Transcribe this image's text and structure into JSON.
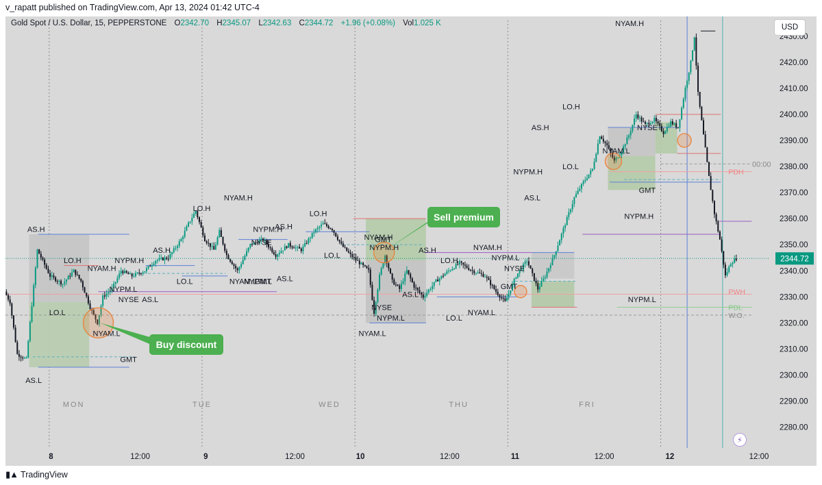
{
  "publish_line": "v_rapatt published on TradingView.com, Apr 13, 2024 01:42 UTC-4",
  "legend": {
    "symbol": "Gold Spot / U.S. Dollar, 15, PEPPERSTONE",
    "o_label": "O",
    "o": "2342.70",
    "h_label": "H",
    "h": "2345.07",
    "l_label": "L",
    "l": "2342.63",
    "c_label": "C",
    "c": "2344.72",
    "change": "+1.96 (+0.08%)",
    "vol_label": "Vol",
    "vol": "1.025 K"
  },
  "currency_button": "USD",
  "price_tag": "2344.72",
  "countdown": "00:00",
  "footer_brand": "TradingView",
  "colors": {
    "up": "#089981",
    "down": "#131722",
    "accent_green": "#4caf50",
    "annotation_circle": "#e8823a"
  },
  "chart_data": {
    "type": "candlestick",
    "symbol": "Gold Spot / U.S. Dollar",
    "timeframe": "15",
    "ylim": [
      2272,
      2436
    ],
    "y_ticks": [
      2280,
      2290,
      2300,
      2310,
      2320,
      2330,
      2340,
      2350,
      2360,
      2370,
      2380,
      2390,
      2400,
      2410,
      2420,
      2430
    ],
    "x_ticks": [
      "8",
      "12:00",
      "9",
      "12:00",
      "10",
      "12:00",
      "11",
      "12:00",
      "12",
      "12:00"
    ],
    "day_labels": [
      "MON",
      "TUE",
      "WED",
      "THU",
      "FRI"
    ],
    "last_price": 2344.72,
    "price_path": [
      {
        "t": 0.0,
        "p": 2332
      },
      {
        "t": 0.6,
        "p": 2328
      },
      {
        "t": 1.4,
        "p": 2308
      },
      {
        "t": 2.4,
        "p": 2306
      },
      {
        "t": 3.6,
        "p": 2348
      },
      {
        "t": 5.0,
        "p": 2338
      },
      {
        "t": 6.4,
        "p": 2335
      },
      {
        "t": 7.6,
        "p": 2340
      },
      {
        "t": 8.4,
        "p": 2336
      },
      {
        "t": 9.4,
        "p": 2326
      },
      {
        "t": 10.2,
        "p": 2320
      },
      {
        "t": 10.8,
        "p": 2330
      },
      {
        "t": 11.8,
        "p": 2333
      },
      {
        "t": 12.8,
        "p": 2340
      },
      {
        "t": 14.0,
        "p": 2338
      },
      {
        "t": 15.4,
        "p": 2340
      },
      {
        "t": 16.6,
        "p": 2344
      },
      {
        "t": 18.0,
        "p": 2345
      },
      {
        "t": 19.4,
        "p": 2352
      },
      {
        "t": 20.2,
        "p": 2358
      },
      {
        "t": 21.0,
        "p": 2363
      },
      {
        "t": 22.0,
        "p": 2352
      },
      {
        "t": 23.0,
        "p": 2348
      },
      {
        "t": 23.6,
        "p": 2355
      },
      {
        "t": 24.4,
        "p": 2346
      },
      {
        "t": 25.6,
        "p": 2340
      },
      {
        "t": 27.0,
        "p": 2350
      },
      {
        "t": 28.4,
        "p": 2352
      },
      {
        "t": 29.8,
        "p": 2346
      },
      {
        "t": 31.2,
        "p": 2350
      },
      {
        "t": 32.6,
        "p": 2348
      },
      {
        "t": 34.0,
        "p": 2355
      },
      {
        "t": 35.0,
        "p": 2358
      },
      {
        "t": 36.0,
        "p": 2356
      },
      {
        "t": 37.0,
        "p": 2350
      },
      {
        "t": 38.0,
        "p": 2346
      },
      {
        "t": 39.0,
        "p": 2343
      },
      {
        "t": 40.0,
        "p": 2340
      },
      {
        "t": 40.6,
        "p": 2324
      },
      {
        "t": 41.2,
        "p": 2338
      },
      {
        "t": 41.8,
        "p": 2346
      },
      {
        "t": 42.6,
        "p": 2336
      },
      {
        "t": 43.4,
        "p": 2333
      },
      {
        "t": 44.2,
        "p": 2340
      },
      {
        "t": 45.0,
        "p": 2334
      },
      {
        "t": 46.0,
        "p": 2330
      },
      {
        "t": 47.4,
        "p": 2336
      },
      {
        "t": 48.8,
        "p": 2340
      },
      {
        "t": 50.0,
        "p": 2343
      },
      {
        "t": 51.4,
        "p": 2340
      },
      {
        "t": 52.8,
        "p": 2338
      },
      {
        "t": 54.0,
        "p": 2332
      },
      {
        "t": 55.0,
        "p": 2328
      },
      {
        "t": 56.2,
        "p": 2338
      },
      {
        "t": 57.4,
        "p": 2344
      },
      {
        "t": 58.6,
        "p": 2333
      },
      {
        "t": 59.4,
        "p": 2338
      },
      {
        "t": 60.4,
        "p": 2346
      },
      {
        "t": 61.6,
        "p": 2358
      },
      {
        "t": 62.6,
        "p": 2368
      },
      {
        "t": 63.6,
        "p": 2374
      },
      {
        "t": 64.6,
        "p": 2379
      },
      {
        "t": 65.4,
        "p": 2392
      },
      {
        "t": 66.2,
        "p": 2388
      },
      {
        "t": 67.0,
        "p": 2382
      },
      {
        "t": 67.8,
        "p": 2386
      },
      {
        "t": 68.6,
        "p": 2392
      },
      {
        "t": 69.4,
        "p": 2400
      },
      {
        "t": 70.4,
        "p": 2396
      },
      {
        "t": 71.4,
        "p": 2398
      },
      {
        "t": 72.4,
        "p": 2393
      },
      {
        "t": 73.2,
        "p": 2397
      },
      {
        "t": 74.0,
        "p": 2395
      },
      {
        "t": 74.8,
        "p": 2410
      },
      {
        "t": 75.4,
        "p": 2420
      },
      {
        "t": 75.8,
        "p": 2430
      },
      {
        "t": 76.2,
        "p": 2408
      },
      {
        "t": 76.8,
        "p": 2392
      },
      {
        "t": 77.4,
        "p": 2376
      },
      {
        "t": 78.0,
        "p": 2362
      },
      {
        "t": 78.6,
        "p": 2352
      },
      {
        "t": 79.2,
        "p": 2338
      },
      {
        "t": 79.8,
        "p": 2343
      },
      {
        "t": 80.4,
        "p": 2344.72
      }
    ],
    "sessions": [
      {
        "name": "MON",
        "ranges": [
          {
            "label": "AS.H",
            "price": 2354
          },
          {
            "label": "AS.L",
            "price": 2303
          },
          {
            "label": "LO.H",
            "price": 2342
          },
          {
            "label": "LO.L",
            "price": 2328
          },
          {
            "label": "NYAM.H",
            "price": 2339
          },
          {
            "label": "NYAM.L",
            "price": 2319
          },
          {
            "label": "NYPM.H",
            "price": 2342
          },
          {
            "label": "NYPM.L",
            "price": 2332
          },
          {
            "label": "NYSE",
            "price": 2331
          },
          {
            "label": "GMT",
            "price": 2307
          }
        ]
      },
      {
        "name": "TUE",
        "ranges": [
          {
            "label": "AS.H",
            "price": 2347
          },
          {
            "label": "AS.L",
            "price": 2332
          },
          {
            "label": "LO.H",
            "price": 2362
          },
          {
            "label": "LO.L",
            "price": 2338
          },
          {
            "label": "NYAM.H",
            "price": 2366
          },
          {
            "label": "NYAM.L",
            "price": 2338
          },
          {
            "label": "NYPM.H",
            "price": 2354
          },
          {
            "label": "NYPM.L",
            "price": 2338
          },
          {
            "label": "NYSE",
            "price": 2350
          },
          {
            "label": "GMT",
            "price": 2338
          }
        ]
      },
      {
        "name": "WED",
        "ranges": [
          {
            "label": "AS.H",
            "price": 2355
          },
          {
            "label": "AS.L",
            "price": 2340
          },
          {
            "label": "LO.H",
            "price": 2360
          },
          {
            "label": "LO.L",
            "price": 2344
          },
          {
            "label": "NYAM.H",
            "price": 2350
          },
          {
            "label": "NYAM.L",
            "price": 2320
          },
          {
            "label": "NYPM.H",
            "price": 2347
          },
          {
            "label": "NYPM.L",
            "price": 2325
          },
          {
            "label": "NYSE",
            "price": 2328
          },
          {
            "label": "GMT",
            "price": 2350
          }
        ]
      },
      {
        "name": "THU",
        "ranges": [
          {
            "label": "AS.H",
            "price": 2346
          },
          {
            "label": "AS.L",
            "price": 2330
          },
          {
            "label": "LO.H",
            "price": 2347
          },
          {
            "label": "LO.L",
            "price": 2326
          },
          {
            "label": "NYAM.H",
            "price": 2351
          },
          {
            "label": "NYAM.L",
            "price": 2326
          },
          {
            "label": "NYPM.L",
            "price": 2347
          },
          {
            "label": "NYSE",
            "price": 2343
          },
          {
            "label": "GMT",
            "price": 2335
          }
        ]
      },
      {
        "name": "FRI",
        "ranges": [
          {
            "label": "AS.H",
            "price": 2395
          },
          {
            "label": "AS.L",
            "price": 2371
          },
          {
            "label": "LO.H",
            "price": 2400
          },
          {
            "label": "LO.L",
            "price": 2385
          },
          {
            "label": "NYAM.H",
            "price": 2432
          },
          {
            "label": "NYAM.L",
            "price": 2385
          },
          {
            "label": "NYPM.H",
            "price": 2379
          },
          {
            "label": "NYPM.L",
            "price": 2333
          },
          {
            "label": "NYSE",
            "price": 2397
          },
          {
            "label": "GMT",
            "price": 2373
          }
        ]
      }
    ],
    "reference_levels": [
      {
        "label": "PDH",
        "price": 2378,
        "color": "#f08080"
      },
      {
        "label": "PWH",
        "price": 2332,
        "color": "#f08080"
      },
      {
        "label": "PDL",
        "price": 2326,
        "color": "#81c784"
      },
      {
        "label": "W.O.",
        "price": 2323,
        "color": "#888888"
      }
    ],
    "annotations": [
      {
        "text": "Buy discount",
        "at_price": 2320,
        "day": "MON"
      },
      {
        "text": "Sell premium",
        "at_price": 2347,
        "day": "WED"
      }
    ]
  }
}
